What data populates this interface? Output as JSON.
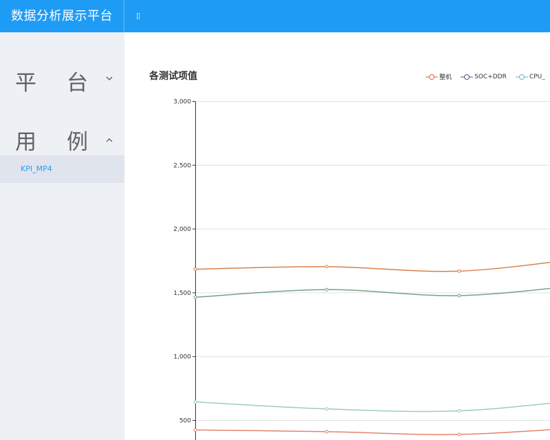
{
  "app": {
    "title": "数据分析展示平台",
    "menu_icon": "menu-icon"
  },
  "sidebar": {
    "groups": [
      {
        "label": "平台",
        "expanded": false
      },
      {
        "label": "用例",
        "expanded": true,
        "items": [
          {
            "label": "KPI_MP4",
            "active": true
          }
        ]
      }
    ]
  },
  "colors": {
    "accent": "#1e9cf5",
    "sidebar_bg": "#edf0f5",
    "active_item_bg": "#dfe4ed",
    "active_text": "#2d9cf0"
  },
  "chart_data": {
    "type": "line",
    "title": "各测试项值",
    "yticks": [
      "3,000",
      "2,500",
      "2,000",
      "1,500",
      "1,000",
      "500"
    ],
    "ylim": [
      0,
      3000
    ],
    "grid": true,
    "legend_position": "top-right",
    "x_visible_points": [
      0,
      1,
      2,
      3
    ],
    "series": [
      {
        "name": "整机",
        "color": "#d6804a",
        "values": [
          1685,
          1705,
          1670,
          1780
        ]
      },
      {
        "name": "SOC+DDR",
        "color": "#73a284",
        "values": [
          1465,
          1525,
          1478,
          1570
        ]
      },
      {
        "name": "CPU_",
        "color": "#9bcdb8",
        "values": [
          645,
          590,
          575,
          670
        ]
      },
      {
        "name": "",
        "color": "#e4826c",
        "values": [
          425,
          412,
          390,
          450
        ]
      }
    ],
    "legend": [
      {
        "name": "整机",
        "color": "#e05c4c"
      },
      {
        "name": "SOC+DDR",
        "color": "#4a5a70"
      },
      {
        "name": "CPU_",
        "color": "#6ab1c7"
      }
    ]
  }
}
